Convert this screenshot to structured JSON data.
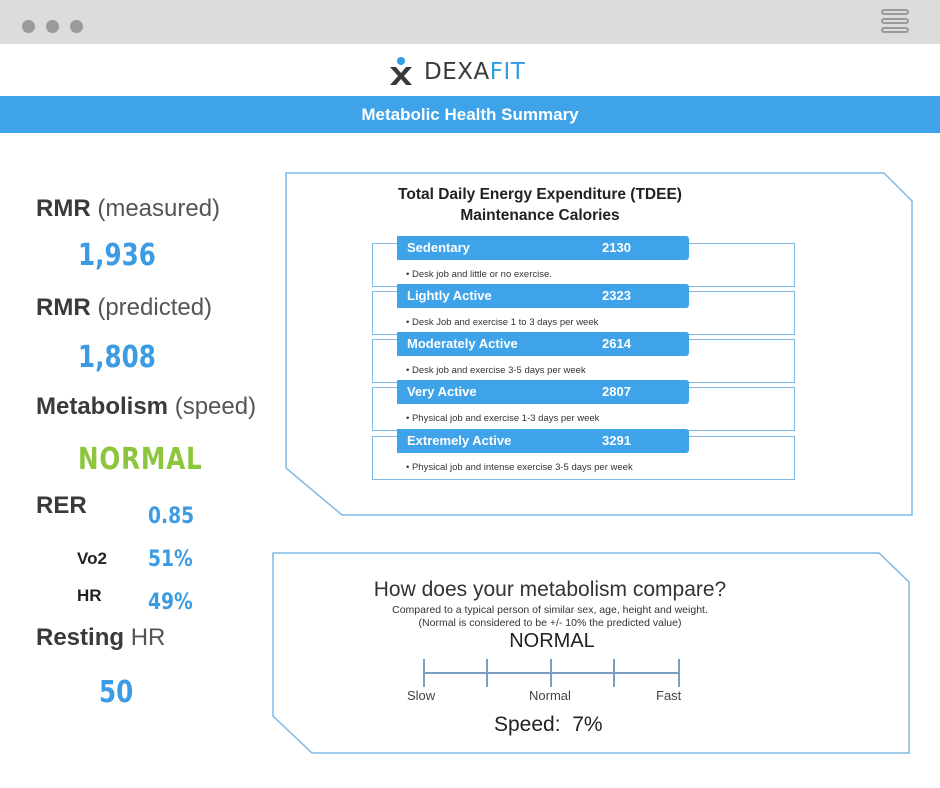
{
  "brand": {
    "name_dark": "DEXA",
    "name_accent": "FIT",
    "accent_color": "#2e9de2"
  },
  "banner": {
    "title": "Metabolic Health Summary",
    "color": "#3fa3ea"
  },
  "left": {
    "rmr_measured": {
      "label_bold": "RMR",
      "label_light": "(measured)",
      "value": "1,936"
    },
    "rmr_predicted": {
      "label_bold": "RMR",
      "label_light": "(predicted)",
      "value": "1,808"
    },
    "metabolism": {
      "label_bold": "Metabolism",
      "label_light": "(speed)",
      "value": "NORMAL",
      "value_color": "#8cc63e"
    },
    "rer": {
      "label": "RER",
      "value": "0.85"
    },
    "vo2": {
      "label": "Vo2",
      "value": "51%"
    },
    "hr": {
      "label": "HR",
      "value": "49%"
    },
    "resting_hr": {
      "label_bold": "Resting",
      "label_light": "HR",
      "value": "50"
    }
  },
  "tdee": {
    "title_line1": "Total Daily Energy Expenditure (TDEE)",
    "title_line2": "Maintenance Calories",
    "rows": [
      {
        "name": "Sedentary",
        "value": "2130",
        "desc": "• Desk job and little or no exercise."
      },
      {
        "name": "Lightly Active",
        "value": "2323",
        "desc": "• Desk Job and exercise 1 to 3 days per week"
      },
      {
        "name": "Moderately Active",
        "value": "2614",
        "desc": "• Desk job and exercise 3-5 days per week"
      },
      {
        "name": "Very Active",
        "value": "2807",
        "desc": "• Physical job and exercise 1-3 days per week"
      },
      {
        "name": "Extremely Active",
        "value": "3291",
        "desc": "• Physical job and intense exercise 3-5 days per week"
      }
    ]
  },
  "compare": {
    "title": "How does your metabolism compare?",
    "subtitle1": "Compared to a typical person of similar sex, age, height and weight.",
    "subtitle2": "(Normal is considered to be +/- 10% the predicted value)",
    "result": "NORMAL",
    "scale_labels": {
      "slow": "Slow",
      "normal": "Normal",
      "fast": "Fast"
    },
    "speed_label": "Speed:",
    "speed_value": "7%"
  }
}
